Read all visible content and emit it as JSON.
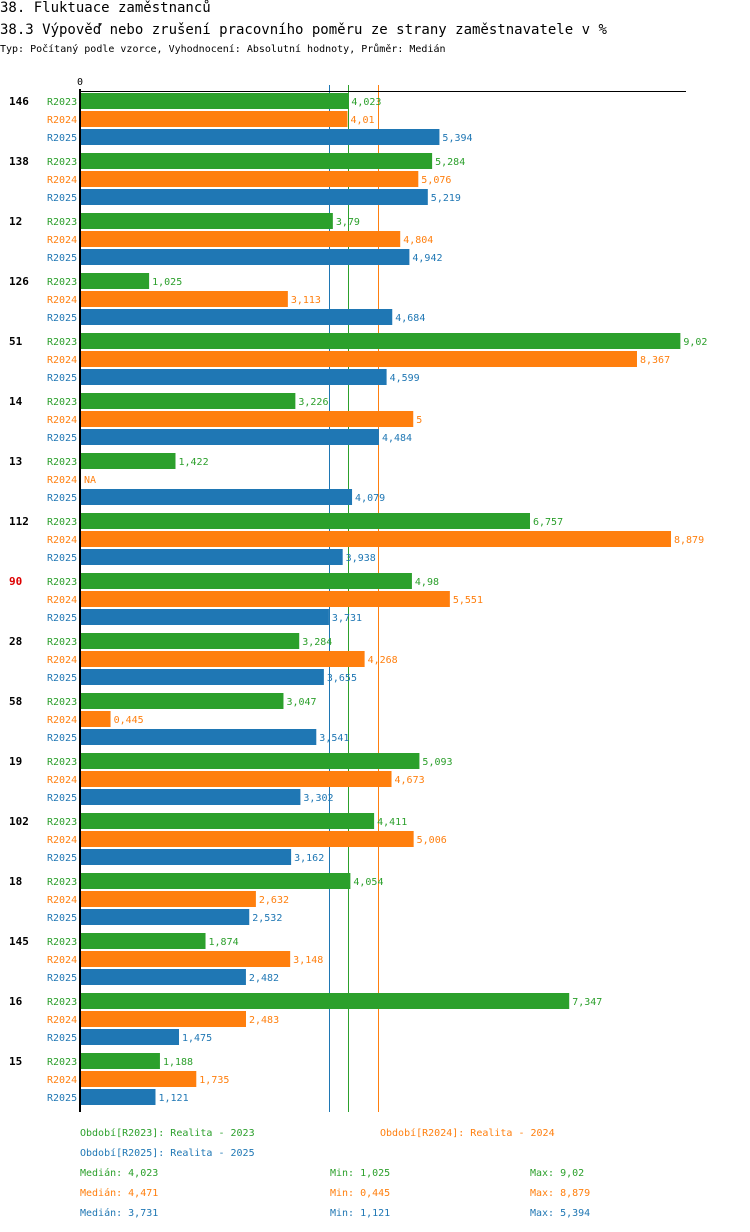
{
  "header": {
    "title": "38. Fluktuace zaměstnanců",
    "subtitle": "38.3 Výpověď nebo zrušení pracovního poměru ze strany zaměstnavatele v %",
    "info": "Typ: Počítaný podle vzorce, Vyhodnocení: Absolutní hodnoty, Průměr: Medián"
  },
  "colors": {
    "R2023": "#2ca02c",
    "R2024": "#ff7f0e",
    "R2025": "#1f77b4",
    "highlight_category": "#dd0000",
    "axis": "#000000"
  },
  "chart_data": {
    "type": "bar",
    "orientation": "horizontal",
    "title": "38.3 Výpověď nebo zrušení pracovního poměru ze strany zaměstnavatele v %",
    "xlabel": "",
    "ylabel": "",
    "x_tick_labels": [
      "0"
    ],
    "xlim": [
      0,
      9.02
    ],
    "grid": false,
    "categories": [
      "146",
      "138",
      "12",
      "126",
      "51",
      "14",
      "13",
      "112",
      "90",
      "28",
      "58",
      "19",
      "102",
      "18",
      "145",
      "16",
      "15"
    ],
    "highlighted_category": "90",
    "series": [
      {
        "name": "R2023",
        "values": [
          4.023,
          5.284,
          3.79,
          1.025,
          9.02,
          3.226,
          1.422,
          6.757,
          4.98,
          3.284,
          3.047,
          5.093,
          4.411,
          4.054,
          1.874,
          7.347,
          1.188
        ],
        "labels": [
          "4,023",
          "5,284",
          "3,79",
          "1,025",
          "9,02",
          "3,226",
          "1,422",
          "6,757",
          "4,98",
          "3,284",
          "3,047",
          "5,093",
          "4,411",
          "4,054",
          "1,874",
          "7,347",
          "1,188"
        ]
      },
      {
        "name": "R2024",
        "values": [
          4.01,
          5.076,
          4.804,
          3.113,
          8.367,
          5,
          null,
          8.879,
          5.551,
          4.268,
          0.445,
          4.673,
          5.006,
          2.632,
          3.148,
          2.483,
          1.735
        ],
        "labels": [
          "4,01",
          "5,076",
          "4,804",
          "3,113",
          "8,367",
          "5",
          "NA",
          "8,879",
          "5,551",
          "4,268",
          "0,445",
          "4,673",
          "5,006",
          "2,632",
          "3,148",
          "2,483",
          "1,735"
        ]
      },
      {
        "name": "R2025",
        "values": [
          5.394,
          5.219,
          4.942,
          4.684,
          4.599,
          4.484,
          4.079,
          3.938,
          3.731,
          3.655,
          3.541,
          3.302,
          3.162,
          2.532,
          2.482,
          1.475,
          1.121
        ],
        "labels": [
          "5,394",
          "5,219",
          "4,942",
          "4,684",
          "4,599",
          "4,484",
          "4,079",
          "3,938",
          "3,731",
          "3,655",
          "3,541",
          "3,302",
          "3,162",
          "2,532",
          "2,482",
          "1,475",
          "1,121"
        ]
      }
    ],
    "reference_lines": [
      {
        "series": "R2023",
        "type": "median",
        "value": 4.023
      },
      {
        "series": "R2024",
        "type": "median",
        "value": 4.471
      },
      {
        "series": "R2025",
        "type": "median",
        "value": 3.731
      }
    ],
    "legend": {
      "placement": "bottom",
      "entries": [
        {
          "series": "R2023",
          "text": "Období[R2023]: Realita - 2023"
        },
        {
          "series": "R2024",
          "text": "Období[R2024]: Realita - 2024"
        },
        {
          "series": "R2025",
          "text": "Období[R2025]: Realita - 2025"
        }
      ]
    },
    "stats": [
      {
        "series": "R2023",
        "median": "Medián: 4,023",
        "min": "Min: 1,025",
        "max": "Max: 9,02"
      },
      {
        "series": "R2024",
        "median": "Medián: 4,471",
        "min": "Min: 0,445",
        "max": "Max: 8,879"
      },
      {
        "series": "R2025",
        "median": "Medián: 3,731",
        "min": "Min: 1,121",
        "max": "Max: 5,394"
      }
    ]
  }
}
